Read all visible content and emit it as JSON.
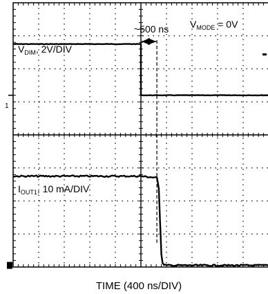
{
  "chart_data": {
    "type": "line",
    "grid": "8 x 10 dotted divisions",
    "xlabel": "TIME (400 ns/DIV)",
    "x_units": "ns",
    "x_per_div": 400,
    "x_divisions": 10,
    "y_divisions": 8,
    "ylim_div": [
      -4,
      4
    ],
    "annotations": {
      "delay": "~500 ns",
      "mode_prefix": "V",
      "mode_sub": "MODE",
      "mode_suffix": " = 0V"
    },
    "series": [
      {
        "name_main": "V",
        "name_sub": "DIM",
        "name_scale": ", 2V/DIV",
        "scale": "2V/DIV",
        "marker": "1",
        "x": [
          -2000,
          0,
          0,
          2000
        ],
        "y_div": [
          2.75,
          2.75,
          1.2,
          1.2
        ]
      },
      {
        "name_main": "I",
        "name_sub": "OUT1",
        "name_scale": ", 10 mA/DIV",
        "scale": "10 mA/DIV",
        "x": [
          -2000,
          0,
          250,
          280,
          300,
          320,
          340,
          400,
          500,
          2000
        ],
        "y_div": [
          -1.25,
          -1.25,
          -1.3,
          -1.6,
          -2.6,
          -3.6,
          -3.9,
          -3.95,
          -3.95,
          -3.95
        ]
      }
    ]
  }
}
